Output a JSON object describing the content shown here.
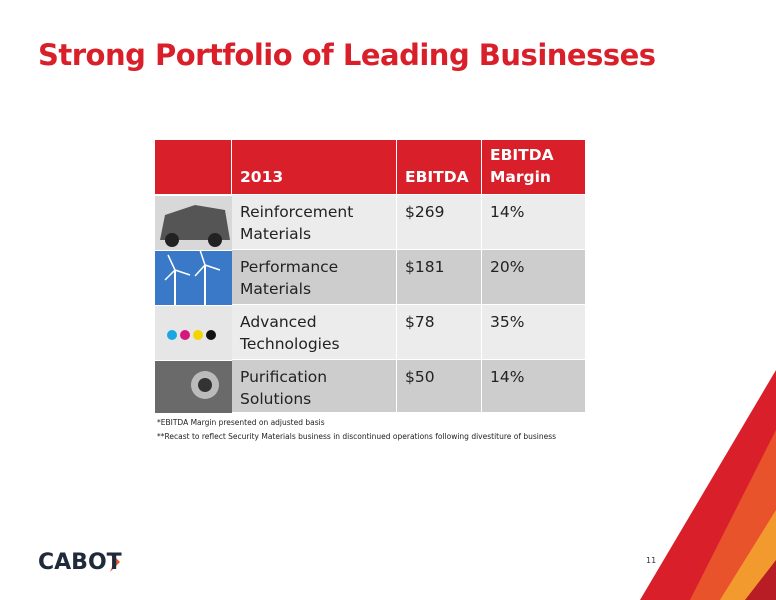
{
  "title": "Strong Portfolio of Leading Businesses",
  "table": {
    "header": [
      "2013",
      "EBITDA",
      "EBITDA Margin"
    ],
    "rows": [
      [
        "Reinforcement Materials",
        "$269",
        "14%"
      ],
      [
        "Performance Materials",
        "$181",
        "20%"
      ],
      [
        "Advanced Technologies",
        "$78",
        "35%"
      ],
      [
        "Purification Solutions",
        "$50",
        "14%"
      ]
    ]
  },
  "footnotes": [
    "*EBITDA Margin presented on adjusted basis",
    "**Recast to reflect Security Materials business in discontinued operations following divestiture of business"
  ],
  "logo": "CABOT",
  "page_number": "11"
}
